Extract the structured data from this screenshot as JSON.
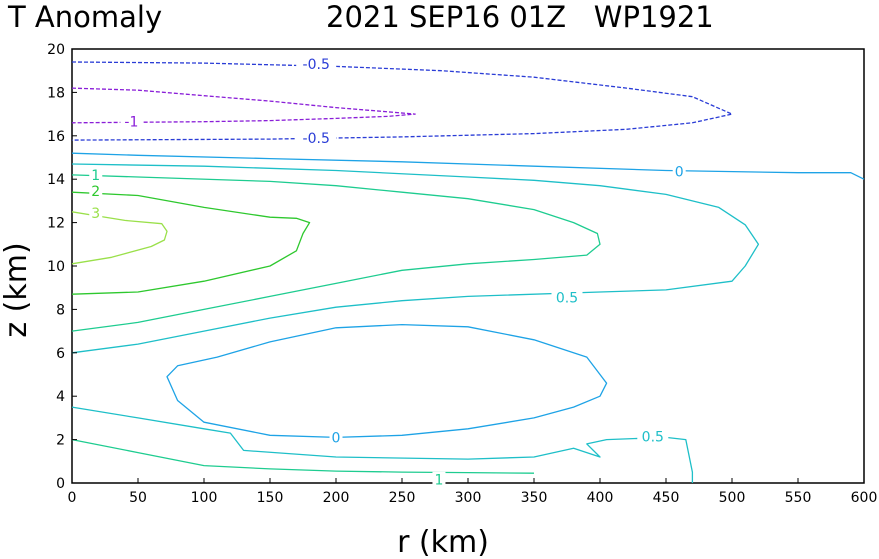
{
  "chart_data": {
    "type": "contour",
    "title_left": "T Anomaly",
    "title_right": "2021 SEP16 01Z   WP1921",
    "xlabel": "r (km)",
    "ylabel": "z (km)",
    "xlim": [
      0,
      600
    ],
    "ylim": [
      0,
      20
    ],
    "xticks": [
      0,
      50,
      100,
      150,
      200,
      250,
      300,
      350,
      400,
      450,
      500,
      550,
      600
    ],
    "yticks": [
      0,
      2,
      4,
      6,
      8,
      10,
      12,
      14,
      16,
      18,
      20
    ],
    "contours": [
      {
        "level": "-0.5",
        "color": "#2a3cd6",
        "dashed": true,
        "points": [
          [
            0,
            19.4
          ],
          [
            100,
            19.35
          ],
          [
            200,
            19.2
          ],
          [
            280,
            19.0
          ],
          [
            350,
            18.7
          ],
          [
            420,
            18.2
          ],
          [
            470,
            17.8
          ],
          [
            500,
            17.0
          ],
          [
            470,
            16.6
          ],
          [
            420,
            16.3
          ],
          [
            350,
            16.1
          ],
          [
            250,
            15.95
          ],
          [
            150,
            15.85
          ],
          [
            0,
            15.8
          ]
        ],
        "labels": [
          {
            "text": "-0.5",
            "x": 185,
            "y": 15.9
          },
          {
            "text": "-0.5",
            "x": 185,
            "y": 19.3
          }
        ]
      },
      {
        "level": "-1",
        "color": "#8a1ed8",
        "dashed": true,
        "points": [
          [
            0,
            18.2
          ],
          [
            50,
            18.1
          ],
          [
            100,
            17.85
          ],
          [
            150,
            17.6
          ],
          [
            200,
            17.3
          ],
          [
            240,
            17.1
          ],
          [
            260,
            17.0
          ],
          [
            240,
            16.9
          ],
          [
            200,
            16.8
          ],
          [
            150,
            16.7
          ],
          [
            100,
            16.65
          ],
          [
            0,
            16.6
          ]
        ],
        "labels": [
          {
            "text": "-1",
            "x": 45,
            "y": 16.65
          }
        ]
      },
      {
        "level": "0",
        "color": "#1ea3e6",
        "dashed": false,
        "points": [
          [
            0,
            15.2
          ],
          [
            50,
            15.1
          ],
          [
            150,
            14.95
          ],
          [
            250,
            14.8
          ],
          [
            350,
            14.6
          ],
          [
            450,
            14.4
          ],
          [
            550,
            14.3
          ],
          [
            590,
            14.3
          ],
          [
            600,
            14.0
          ]
        ],
        "labels": [
          {
            "text": "0",
            "x": 460,
            "y": 14.35
          }
        ]
      },
      {
        "level": "0",
        "color": "#1ea3e6",
        "dashed": false,
        "points": [
          [
            400,
            5.0
          ],
          [
            405,
            4.6
          ],
          [
            400,
            4.0
          ],
          [
            380,
            3.5
          ],
          [
            350,
            3.0
          ],
          [
            300,
            2.5
          ],
          [
            250,
            2.2
          ],
          [
            200,
            2.1
          ],
          [
            150,
            2.2
          ],
          [
            100,
            2.8
          ],
          [
            80,
            3.8
          ],
          [
            72,
            4.9
          ],
          [
            80,
            5.4
          ],
          [
            110,
            5.8
          ],
          [
            150,
            6.5
          ],
          [
            200,
            7.15
          ],
          [
            250,
            7.3
          ],
          [
            300,
            7.2
          ],
          [
            350,
            6.6
          ],
          [
            390,
            5.8
          ],
          [
            400,
            5.0
          ]
        ],
        "labels": [
          {
            "text": "0",
            "x": 200,
            "y": 2.1
          }
        ]
      },
      {
        "level": "0.5",
        "color": "#1ebfc8",
        "dashed": false,
        "points": [
          [
            0,
            6.0
          ],
          [
            50,
            6.4
          ],
          [
            100,
            7.0
          ],
          [
            150,
            7.6
          ],
          [
            200,
            8.1
          ],
          [
            250,
            8.4
          ],
          [
            300,
            8.6
          ],
          [
            400,
            8.8
          ],
          [
            450,
            8.9
          ],
          [
            500,
            9.3
          ],
          [
            510,
            10.0
          ],
          [
            520,
            11.0
          ],
          [
            510,
            11.9
          ],
          [
            490,
            12.7
          ],
          [
            450,
            13.3
          ],
          [
            400,
            13.7
          ],
          [
            350,
            13.95
          ],
          [
            300,
            14.1
          ],
          [
            200,
            14.4
          ],
          [
            100,
            14.6
          ],
          [
            0,
            14.7
          ]
        ],
        "labels": [
          {
            "text": "0.5",
            "x": 375,
            "y": 8.55
          }
        ]
      },
      {
        "level": "0.5",
        "color": "#1ebfc8",
        "dashed": false,
        "points": [
          [
            0,
            3.5
          ],
          [
            50,
            3.0
          ],
          [
            100,
            2.5
          ],
          [
            120,
            2.3
          ],
          [
            130,
            1.5
          ],
          [
            200,
            1.2
          ],
          [
            300,
            1.1
          ],
          [
            350,
            1.2
          ],
          [
            380,
            1.6
          ],
          [
            400,
            1.2
          ],
          [
            390,
            1.8
          ],
          [
            405,
            2.0
          ],
          [
            450,
            2.1
          ],
          [
            465,
            2.0
          ],
          [
            470,
            0.5
          ],
          [
            470,
            0
          ]
        ],
        "labels": [
          {
            "text": "0.5",
            "x": 440,
            "y": 2.15
          }
        ]
      },
      {
        "level": "1",
        "color": "#1ecc90",
        "dashed": false,
        "points": [
          [
            0,
            2.0
          ],
          [
            50,
            1.4
          ],
          [
            100,
            0.8
          ],
          [
            150,
            0.65
          ],
          [
            200,
            0.55
          ],
          [
            250,
            0.5
          ],
          [
            300,
            0.48
          ],
          [
            350,
            0.45
          ]
        ],
        "labels": [
          {
            "text": "1",
            "x": 278,
            "y": 0.15
          }
        ]
      },
      {
        "level": "1",
        "color": "#1ecc90",
        "dashed": false,
        "points": [
          [
            0,
            7.0
          ],
          [
            50,
            7.4
          ],
          [
            100,
            8.0
          ],
          [
            150,
            8.6
          ],
          [
            200,
            9.2
          ],
          [
            250,
            9.8
          ],
          [
            300,
            10.1
          ],
          [
            350,
            10.3
          ],
          [
            390,
            10.5
          ],
          [
            400,
            11.0
          ],
          [
            398,
            11.5
          ],
          [
            380,
            12.0
          ],
          [
            350,
            12.6
          ],
          [
            300,
            13.1
          ],
          [
            250,
            13.4
          ],
          [
            200,
            13.7
          ],
          [
            150,
            13.9
          ],
          [
            50,
            14.1
          ],
          [
            0,
            14.2
          ]
        ],
        "labels": [
          {
            "text": "1",
            "x": 18,
            "y": 14.2
          }
        ]
      },
      {
        "level": "2",
        "color": "#2ec82e",
        "dashed": false,
        "points": [
          [
            0,
            8.7
          ],
          [
            50,
            8.8
          ],
          [
            100,
            9.3
          ],
          [
            150,
            10.0
          ],
          [
            170,
            10.7
          ],
          [
            175,
            11.5
          ],
          [
            180,
            12.0
          ],
          [
            170,
            12.2
          ],
          [
            150,
            12.25
          ],
          [
            100,
            12.7
          ],
          [
            50,
            13.25
          ],
          [
            0,
            13.4
          ]
        ],
        "labels": [
          {
            "text": "2",
            "x": 18,
            "y": 13.45
          }
        ]
      },
      {
        "level": "3",
        "color": "#9ae04a",
        "dashed": false,
        "points": [
          [
            0,
            10.1
          ],
          [
            30,
            10.4
          ],
          [
            60,
            10.9
          ],
          [
            70,
            11.2
          ],
          [
            72,
            11.6
          ],
          [
            68,
            11.95
          ],
          [
            40,
            12.1
          ],
          [
            20,
            12.3
          ],
          [
            0,
            12.5
          ]
        ],
        "labels": [
          {
            "text": "3",
            "x": 18,
            "y": 12.45
          }
        ]
      }
    ]
  }
}
